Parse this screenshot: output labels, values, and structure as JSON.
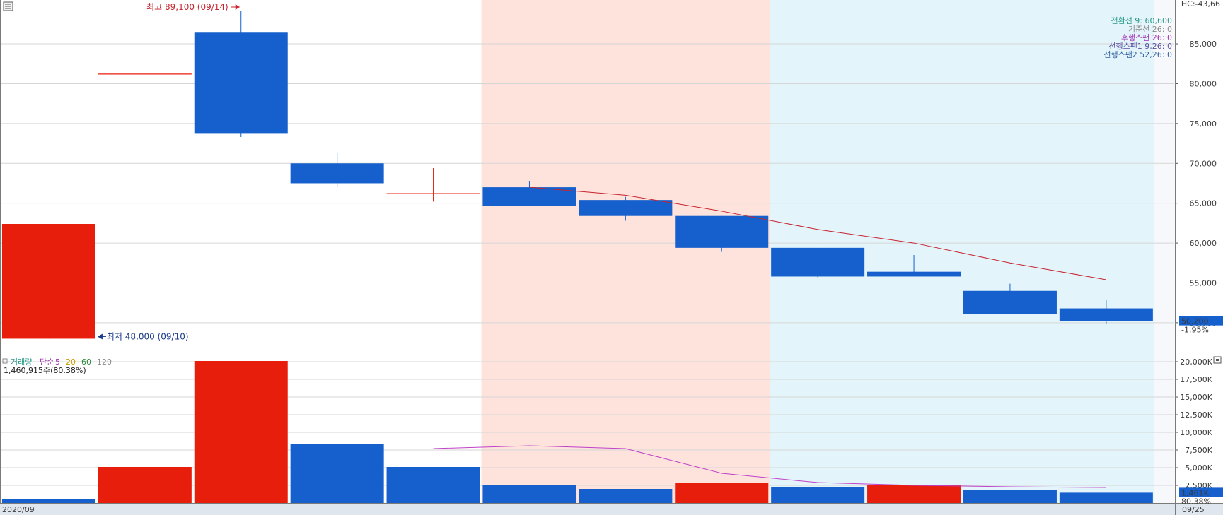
{
  "chart_data": [
    {
      "type": "candlestick",
      "panel": "price",
      "top_right_label": "HC:-43,66",
      "ylim": [
        46000,
        90500
      ],
      "yticks": [
        50000,
        55000,
        60000,
        65000,
        70000,
        75000,
        80000,
        85000
      ],
      "ytick_labels": [
        "50,000",
        "55,000",
        "60,000",
        "65,000",
        "70,000",
        "75,000",
        "80,000",
        "85,000"
      ],
      "candles": [
        {
          "open": 48000,
          "high": 62400,
          "low": 48000,
          "close": 62400,
          "color": "up"
        },
        {
          "open": 81200,
          "high": 81200,
          "low": 81200,
          "close": 81200,
          "color": "up"
        },
        {
          "open": 86400,
          "high": 89100,
          "low": 73300,
          "close": 73800,
          "color": "down"
        },
        {
          "open": 70000,
          "high": 71300,
          "low": 67000,
          "close": 67500,
          "color": "down"
        },
        {
          "open": 66200,
          "high": 69400,
          "low": 65200,
          "close": 66200,
          "color": "up"
        },
        {
          "open": 67000,
          "high": 67800,
          "low": 64700,
          "close": 64700,
          "color": "down"
        },
        {
          "open": 65400,
          "high": 65800,
          "low": 62800,
          "close": 63400,
          "color": "down"
        },
        {
          "open": 63400,
          "high": 63400,
          "low": 58900,
          "close": 59400,
          "color": "down"
        },
        {
          "open": 59400,
          "high": 59400,
          "low": 55700,
          "close": 55800,
          "color": "down"
        },
        {
          "open": 56400,
          "high": 58500,
          "low": 55800,
          "close": 55800,
          "color": "down"
        },
        {
          "open": 54000,
          "high": 54900,
          "low": 51100,
          "close": 51100,
          "color": "down"
        },
        {
          "open": 51800,
          "high": 52900,
          "low": 49900,
          "close": 50200,
          "color": "down"
        }
      ],
      "overlay_line": {
        "start_index": 5,
        "values": [
          67000,
          66000,
          64000,
          61700,
          60000,
          57500,
          55400
        ]
      },
      "shaded_regions": [
        {
          "from_index": 5,
          "to_index": 7,
          "color": "#fde3dc"
        },
        {
          "from_index": 8,
          "to_index": 11,
          "color": "#e3f4fb"
        }
      ],
      "legend": [
        {
          "text": "전환선 9: 60,600",
          "color": "#2a9a8a"
        },
        {
          "text": "기준선 26: 0",
          "color": "#8a8a8a"
        },
        {
          "text": "후행스팬 26: 0",
          "color": "#a030b0"
        },
        {
          "text": "선행스팬1 9,26: 0",
          "color": "#5b4fa0"
        },
        {
          "text": "선행스팬2 52,26: 0",
          "color": "#2f5fa0"
        }
      ],
      "high_annotation": "최고 89,100 (09/14)",
      "high_value": 89100,
      "low_annotation": "최저 48,000 (09/10)",
      "low_value": 48000,
      "last_price_label": "50,200",
      "last_price": 50200,
      "last_change_label": "-1.95%"
    },
    {
      "type": "bar",
      "panel": "volume",
      "title_parts": [
        {
          "text": "거래량",
          "color": "#2a9a8a"
        },
        {
          "text": "단순",
          "color": "#a030b0"
        },
        {
          "text": "5",
          "color": "#a030b0"
        },
        {
          "text": "20",
          "color": "#c8a000"
        },
        {
          "text": "60",
          "color": "#2f8a3a"
        },
        {
          "text": "120",
          "color": "#8a8a8a"
        }
      ],
      "subtitle": "1,460,915주(80.38%)",
      "ylim": [
        0,
        20500
      ],
      "yticks": [
        2500,
        5000,
        7500,
        10000,
        12500,
        15000,
        17500,
        20000
      ],
      "ytick_labels": [
        "2,500K",
        "5,000K",
        "7,500K",
        "10,000K",
        "12,500K",
        "15,000K",
        "17,500K",
        "20,000K"
      ],
      "values": [
        600,
        5100,
        20100,
        8300,
        5100,
        2500,
        2000,
        2900,
        2300,
        2500,
        1900,
        1461
      ],
      "colors": [
        "down",
        "up",
        "up",
        "down",
        "down",
        "down",
        "down",
        "up",
        "down",
        "up",
        "down",
        "down"
      ],
      "ma_line": {
        "start_index": 4,
        "values": [
          7700,
          8100,
          7700,
          4200,
          2900,
          2500,
          2300,
          2200
        ]
      },
      "last_volume_label": "1,461K",
      "last_volume": 1461,
      "last_pct_label": "80.38%"
    }
  ],
  "x_axis": {
    "start_label": "2020/09",
    "end_label": "09/25"
  },
  "colors": {
    "up": "#e81e0c",
    "down": "#1560cc",
    "ma": "#c8232e",
    "vol_ma": "#c040c8",
    "grid": "#d6d6d6"
  }
}
